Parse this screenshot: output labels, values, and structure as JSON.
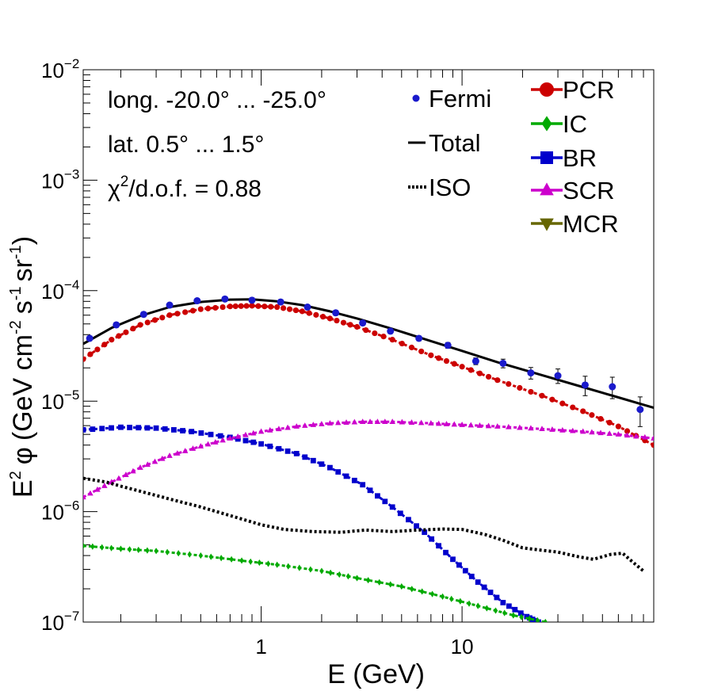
{
  "chart_data": {
    "type": "scatter",
    "title": "",
    "xlabel": "E (GeV)",
    "ylabel": "E2 φ (GeV cm-2 s-1 sr-1)",
    "ylabel_parts": {
      "e": "E",
      "e_exp": "2",
      "phi": "φ",
      "open": "(GeV cm",
      "cm_exp": "-2",
      "s": "s",
      "s_exp": "-1",
      "sr": "sr",
      "sr_exp": "-1",
      "close": ")"
    },
    "x_scale": "log",
    "y_scale": "log",
    "xlim": [
      0.13,
      90
    ],
    "ylim": [
      1e-07,
      0.01
    ],
    "x_tick_labels": [
      {
        "value": 1,
        "label": "1"
      },
      {
        "value": 10,
        "label": "10"
      }
    ],
    "y_tick_labels": [
      {
        "value": 1e-07,
        "base": "10",
        "exp": "−7"
      },
      {
        "value": 1e-06,
        "base": "10",
        "exp": "−6"
      },
      {
        "value": 1e-05,
        "base": "10",
        "exp": "−5"
      },
      {
        "value": 0.0001,
        "base": "10",
        "exp": "−4"
      },
      {
        "value": 0.001,
        "base": "10",
        "exp": "−3"
      },
      {
        "value": 0.01,
        "base": "10",
        "exp": "−2"
      }
    ],
    "annotations": {
      "longitude": "long. -20.0° ... -25.0°",
      "latitude": "lat. 0.5° ... 1.5°",
      "chi_symbol": "χ",
      "chi_exp": "2",
      "chi_rest": "/d.o.f. = 0.88"
    },
    "legend": [
      {
        "name": "Fermi",
        "marker": "circle-small",
        "color": "#1a1acc"
      },
      {
        "name": "Total",
        "marker": "line",
        "color": "#000000"
      },
      {
        "name": "ISO",
        "marker": "dotted",
        "color": "#000000"
      },
      {
        "name": "PCR",
        "marker": "circle",
        "color": "#cc0000"
      },
      {
        "name": "IC",
        "marker": "diamond",
        "color": "#00aa00"
      },
      {
        "name": "BR",
        "marker": "square",
        "color": "#0000cc"
      },
      {
        "name": "SCR",
        "marker": "triangle-up",
        "color": "#cc00cc"
      },
      {
        "name": "MCR",
        "marker": "triangle-down",
        "color": "#666600"
      }
    ],
    "fermi": {
      "color": "#1a1acc",
      "points": [
        {
          "x": 0.14,
          "y": 3.7e-05,
          "err": 0.05
        },
        {
          "x": 0.19,
          "y": 4.9e-05,
          "err": 0.05
        },
        {
          "x": 0.26,
          "y": 6.1e-05,
          "err": 0.05
        },
        {
          "x": 0.35,
          "y": 7.4e-05,
          "err": 0.05
        },
        {
          "x": 0.48,
          "y": 8.1e-05,
          "err": 0.05
        },
        {
          "x": 0.66,
          "y": 8.4e-05,
          "err": 0.05
        },
        {
          "x": 0.9,
          "y": 8.2e-05,
          "err": 0.05
        },
        {
          "x": 1.25,
          "y": 7.9e-05,
          "err": 0.05
        },
        {
          "x": 1.7,
          "y": 7.1e-05,
          "err": 0.05
        },
        {
          "x": 2.35,
          "y": 6.3e-05,
          "err": 0.05
        },
        {
          "x": 3.2,
          "y": 5.1e-05,
          "err": 0.05
        },
        {
          "x": 4.4,
          "y": 4.3e-05,
          "err": 0.05
        },
        {
          "x": 6.1,
          "y": 3.7e-05,
          "err": 0.05
        },
        {
          "x": 8.5,
          "y": 3.2e-05,
          "err": 0.06
        },
        {
          "x": 11.7,
          "y": 2.3e-05,
          "err": 0.07
        },
        {
          "x": 16.0,
          "y": 2.2e-05,
          "err": 0.09
        },
        {
          "x": 22.0,
          "y": 1.8e-05,
          "err": 0.12
        },
        {
          "x": 30.0,
          "y": 1.7e-05,
          "err": 0.15
        },
        {
          "x": 41.0,
          "y": 1.4e-05,
          "err": 0.2
        },
        {
          "x": 56.0,
          "y": 1.35e-05,
          "err": 0.22
        },
        {
          "x": 77.0,
          "y": 8.4e-06,
          "err": 0.3
        }
      ]
    },
    "series": [
      {
        "name": "Total",
        "style": "solid",
        "color": "#000000",
        "x": [
          0.13,
          0.18,
          0.25,
          0.35,
          0.5,
          0.7,
          0.9,
          1.2,
          1.6,
          2.2,
          3,
          4.5,
          7,
          10,
          15,
          25,
          40,
          60,
          90
        ],
        "y": [
          3.3e-05,
          4.6e-05,
          5.9e-05,
          7.1e-05,
          7.9e-05,
          8.3e-05,
          8.35e-05,
          8e-05,
          7.4e-05,
          6.5e-05,
          5.6e-05,
          4.5e-05,
          3.5e-05,
          2.85e-05,
          2.25e-05,
          1.72e-05,
          1.34e-05,
          1.08e-05,
          8.7e-06
        ]
      },
      {
        "name": "PCR",
        "style": "markers",
        "marker": "circle",
        "color": "#cc0000",
        "x": [
          0.13,
          0.18,
          0.25,
          0.35,
          0.5,
          0.7,
          0.9,
          1.2,
          1.6,
          2.2,
          3,
          4.5,
          7,
          10,
          15,
          25,
          40,
          60,
          90
        ],
        "y": [
          2.4e-05,
          3.6e-05,
          4.9e-05,
          6e-05,
          6.8e-05,
          7.2e-05,
          7.3e-05,
          7.1e-05,
          6.5e-05,
          5.6e-05,
          4.7e-05,
          3.6e-05,
          2.6e-05,
          2.05e-05,
          1.55e-05,
          1.12e-05,
          8.1e-06,
          5.9e-06,
          4e-06
        ]
      },
      {
        "name": "BR",
        "style": "markers",
        "marker": "square",
        "color": "#0000cc",
        "x": [
          0.13,
          0.2,
          0.3,
          0.45,
          0.7,
          1.0,
          1.5,
          2.2,
          3.2,
          4.5,
          6.5,
          9,
          12,
          16,
          21,
          24
        ],
        "y": [
          5.5e-06,
          5.8e-06,
          5.7e-06,
          5.3e-06,
          4.7e-06,
          4.1e-06,
          3.35e-06,
          2.5e-06,
          1.75e-06,
          1.1e-06,
          6.5e-07,
          3.7e-07,
          2.3e-07,
          1.5e-07,
          1.12e-07,
          1e-07
        ]
      },
      {
        "name": "SCR",
        "style": "markers",
        "marker": "triangle-up",
        "color": "#cc00cc",
        "x": [
          0.13,
          0.18,
          0.25,
          0.35,
          0.5,
          0.7,
          1.0,
          1.5,
          2.2,
          3.2,
          4.5,
          7,
          10,
          15,
          25,
          40,
          60,
          90
        ],
        "y": [
          1.35e-06,
          1.85e-06,
          2.5e-06,
          3.2e-06,
          3.9e-06,
          4.6e-06,
          5.3e-06,
          5.9e-06,
          6.3e-06,
          6.5e-06,
          6.5e-06,
          6.3e-06,
          6.1e-06,
          5.9e-06,
          5.6e-06,
          5.3e-06,
          5e-06,
          4.6e-06
        ]
      },
      {
        "name": "IC",
        "style": "markers",
        "marker": "diamond",
        "color": "#00aa00",
        "x": [
          0.13,
          0.2,
          0.3,
          0.5,
          0.8,
          1.2,
          2,
          3,
          5,
          8,
          12,
          18,
          26
        ],
        "y": [
          4.9e-07,
          4.6e-07,
          4.4e-07,
          4e-07,
          3.6e-07,
          3.3e-07,
          2.9e-07,
          2.5e-07,
          2.1e-07,
          1.7e-07,
          1.4e-07,
          1.15e-07,
          1e-07
        ]
      },
      {
        "name": "ISO",
        "style": "dotted",
        "color": "#000000",
        "x": [
          0.13,
          0.17,
          0.2,
          0.26,
          0.35,
          0.5,
          0.7,
          1.0,
          1.3,
          1.8,
          2.5,
          3.3,
          4.5,
          6,
          8,
          10,
          13,
          16,
          20,
          24,
          30,
          38,
          45,
          55,
          63,
          72,
          80
        ],
        "y": [
          2e-06,
          1.85e-06,
          1.7e-06,
          1.5e-06,
          1.3e-06,
          1.1e-06,
          9.2e-07,
          7.6e-07,
          6.9e-07,
          6.6e-07,
          6.5e-07,
          6.8e-07,
          6.6e-07,
          6.8e-07,
          6.95e-07,
          6.9e-07,
          6.2e-07,
          5.5e-07,
          4.7e-07,
          4.5e-07,
          4.3e-07,
          3.9e-07,
          3.7e-07,
          4.1e-07,
          4.2e-07,
          3.4e-07,
          2.9e-07
        ]
      }
    ]
  }
}
